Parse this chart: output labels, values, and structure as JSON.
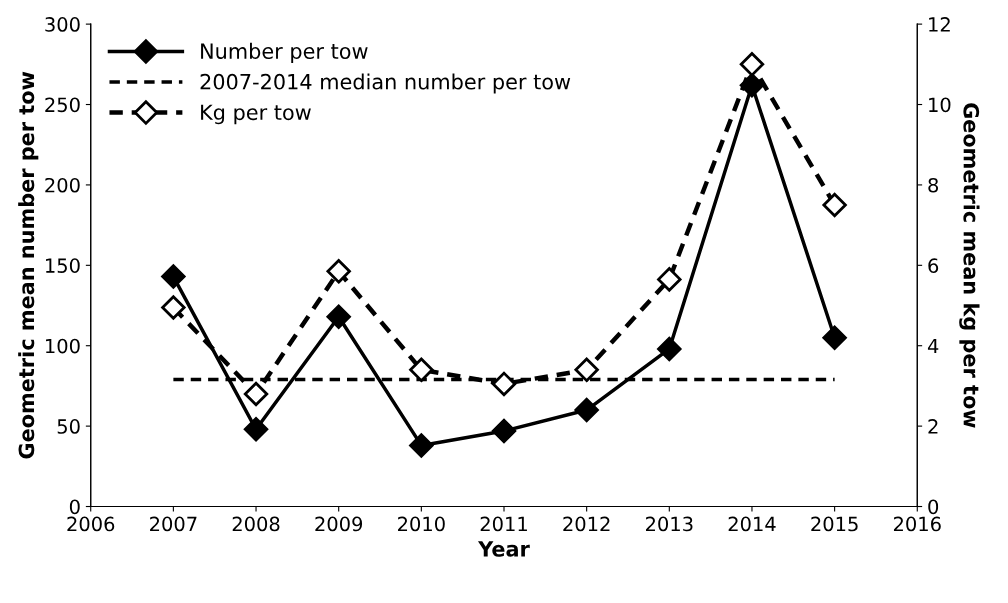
{
  "chart_data": {
    "type": "line",
    "xlabel": "Year",
    "ylabel": "Geometric mean number per tow",
    "y2label": "Geometric mean kg per tow",
    "xlim": [
      2006,
      2016
    ],
    "xticks": [
      2006,
      2007,
      2008,
      2009,
      2010,
      2011,
      2012,
      2013,
      2014,
      2015,
      2016
    ],
    "ylim": [
      0,
      300
    ],
    "yticks": [
      0,
      50,
      100,
      150,
      200,
      250,
      300
    ],
    "y2lim": [
      0,
      12
    ],
    "y2ticks": [
      0,
      2,
      4,
      6,
      8,
      10,
      12
    ],
    "grid": false,
    "legend": "top left",
    "x": [
      2007,
      2008,
      2009,
      2010,
      2011,
      2012,
      2013,
      2014,
      2015
    ],
    "series": [
      {
        "name": "Number per tow",
        "color": "#000000",
        "marker": "diamond",
        "line_style": "solid",
        "values": [
          143,
          48,
          118,
          38,
          47,
          60,
          98,
          262,
          105
        ]
      },
      {
        "name": "2007-2014 median number per tow",
        "color": "#000000",
        "marker": "none",
        "line_style": "dashed",
        "values": [
          79,
          79,
          79,
          79,
          79,
          79,
          79,
          79,
          79
        ]
      },
      {
        "name": "Kg per tow",
        "color": "#000000",
        "marker": "diamond",
        "line_style": "dashed",
        "axis": "y2",
        "values": [
          4.95,
          2.8,
          5.85,
          3.4,
          3.05,
          3.4,
          5.65,
          11.0,
          7.5
        ]
      }
    ]
  }
}
